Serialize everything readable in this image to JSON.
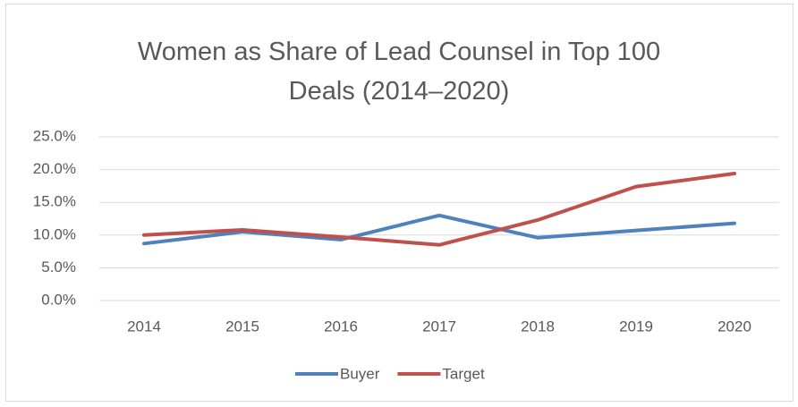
{
  "chart_data": {
    "type": "line",
    "title": "Women as Share of Lead Counsel in Top 100 Deals (2014–2020)",
    "categories": [
      "2014",
      "2015",
      "2016",
      "2017",
      "2018",
      "2019",
      "2020"
    ],
    "series": [
      {
        "name": "Buyer",
        "color": "#4f81bd",
        "values": [
          8.7,
          10.5,
          9.3,
          13.0,
          9.6,
          10.7,
          11.8
        ]
      },
      {
        "name": "Target",
        "color": "#c0504d",
        "values": [
          10.0,
          10.8,
          9.7,
          8.5,
          12.3,
          17.4,
          19.4
        ]
      }
    ],
    "ylim": [
      0,
      25
    ],
    "yticks": [
      {
        "value": 0,
        "label": "0.0%"
      },
      {
        "value": 5,
        "label": "5.0%"
      },
      {
        "value": 10,
        "label": "10.0%"
      },
      {
        "value": 15,
        "label": "15.0%"
      },
      {
        "value": 20,
        "label": "20.0%"
      },
      {
        "value": 25,
        "label": "25.0%"
      }
    ],
    "grid": true,
    "legend": "bottom"
  }
}
